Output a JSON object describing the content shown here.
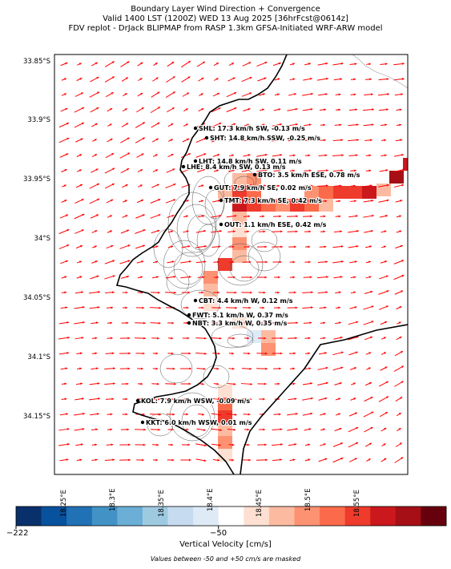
{
  "header": {
    "line1": "Boundary Layer Wind Direction + Convergence",
    "line2": "Valid 1400 LST (1200Z) WED 13 Aug 2025 [36hrFcst@0614z]",
    "line3": "FDV replot - DrJack BLIPMAP from RASP 1.3km GFSA-Initiated WRF-ARW model"
  },
  "axes": {
    "lat_labels": [
      "33.85°S",
      "33.9°S",
      "33.95°S",
      "34°S",
      "34.05°S",
      "34.1°S",
      "34.15°S"
    ],
    "lon_labels": [
      "18.25°E",
      "18.3°E",
      "18.35°E",
      "18.4°E",
      "18.45°E",
      "18.5°E",
      "18.55°E"
    ]
  },
  "stations": [
    {
      "code": "SHL",
      "text": "SHL: 17.3 km/h SW, -0.13 m/s"
    },
    {
      "code": "SHT",
      "text": "SHT: 14.8 km/h SSW, -0.25 m/s"
    },
    {
      "code": "LHT",
      "text": "LHT: 14.8 km/h SW, 0.11 m/s"
    },
    {
      "code": "LHE",
      "text": "LHE: 8.4 km/h SW, 0.13 m/s"
    },
    {
      "code": "BTO",
      "text": "BTO: 3.5 km/h ESE, 0.78 m/s"
    },
    {
      "code": "GUT",
      "text": "GUT: 7.9 km/h SE, 0.02 m/s"
    },
    {
      "code": "TMT",
      "text": "TMT: 7.3 km/h SE, 0.42 m/s"
    },
    {
      "code": "OUT",
      "text": "OUT: 1.1 km/h ESE, 0.42 m/s"
    },
    {
      "code": "CBT",
      "text": "CBT: 4.4 km/h W, 0.12 m/s"
    },
    {
      "code": "FWT",
      "text": "FWT: 5.1 km/h W, 0.37 m/s"
    },
    {
      "code": "NBT",
      "text": "NBT: 3.3 km/h W, 0.35 m/s"
    },
    {
      "code": "KOL",
      "text": "KOL: 7.9 km/h WSW, -0.09 m/s"
    },
    {
      "code": "KKT",
      "text": "KKT: 6.0 km/h WSW, 0.01 m/s"
    }
  ],
  "colorbar": {
    "label": "Vertical Velocity [cm/s]",
    "tick_min": "−222",
    "tick_mid": "−50",
    "note": "Values between -50 and +50 cm/s are masked",
    "colors": [
      "#08306b",
      "#08519c",
      "#2171b5",
      "#4292c6",
      "#6baed6",
      "#9ecae1",
      "#c6dbef",
      "#deebf7",
      "#ffffff",
      "#fee0d2",
      "#fcbba1",
      "#fc9272",
      "#fb6a4a",
      "#ef3b2c",
      "#cb181d",
      "#a50f15",
      "#67000d"
    ]
  },
  "colors": {
    "arrow": "#ff0000",
    "coast": "#000000",
    "contour": "#555555"
  }
}
